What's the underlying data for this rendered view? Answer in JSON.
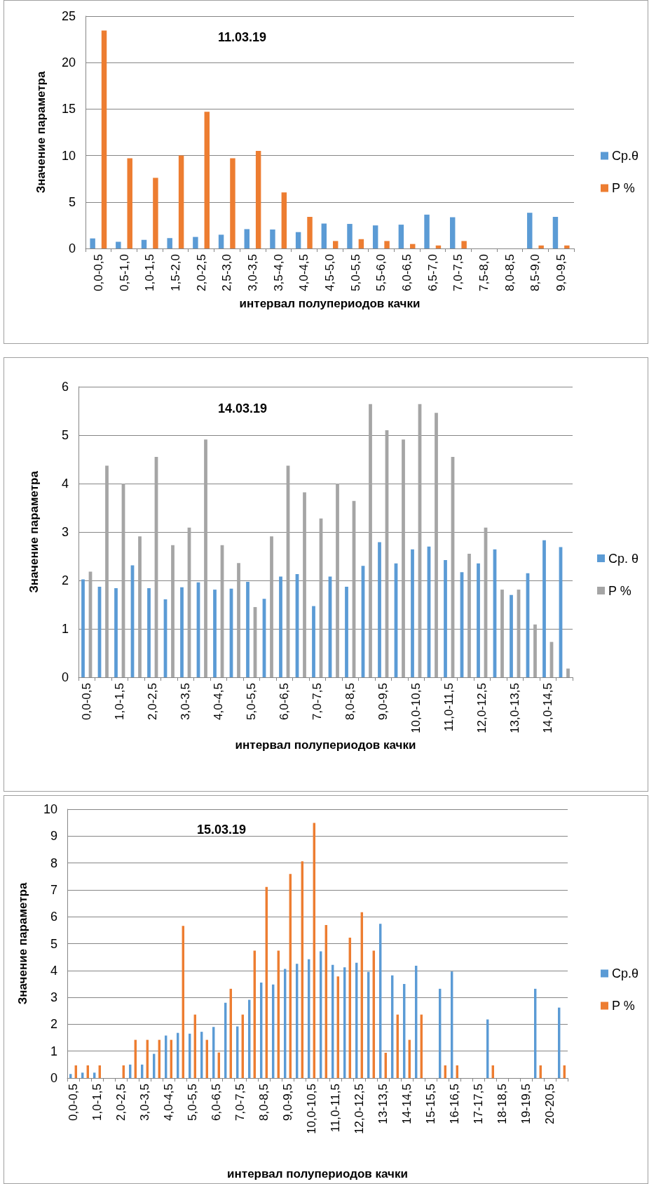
{
  "chart_data": [
    {
      "type": "bar",
      "title": "11.03.19",
      "xlabel": "интервал полупериодов качки",
      "ylabel": "Значение параметра",
      "categories": [
        "0,0-0,5",
        "0,5-1,0",
        "1,0-1,5",
        "1,5-2,0",
        "2,0-2,5",
        "2,5-3,0",
        "3,0-3,5",
        "3,5-4,0",
        "4,0-4,5",
        "4,5-5,0",
        "5,0-5,5",
        "5,5-6,0",
        "6,0-6,5",
        "6,5-7,0",
        "7,0-7,5",
        "7,5-8,0",
        "8,0-8,5",
        "8,5-9,0",
        "9,0-9,5"
      ],
      "series": [
        {
          "name": "Ср.θ",
          "color": "#5b9bd5",
          "values": [
            1.08,
            0.72,
            0.92,
            1.12,
            1.24,
            1.48,
            2.08,
            2.04,
            1.76,
            2.68,
            2.64,
            2.48,
            2.56,
            3.64,
            3.36,
            null,
            null,
            3.84,
            3.4
          ]
        },
        {
          "name": "P %",
          "color": "#ed7d31",
          "values": [
            23.45,
            9.7,
            7.6,
            10.0,
            14.7,
            9.7,
            10.5,
            6.03,
            3.4,
            0.8,
            1.0,
            0.8,
            0.48,
            0.32,
            0.8,
            null,
            null,
            0.32,
            0.32
          ]
        }
      ],
      "ylim": [
        0,
        25
      ],
      "yticks": [
        0,
        5,
        10,
        15,
        20,
        25
      ],
      "grid": "y",
      "legend": "right"
    },
    {
      "type": "bar",
      "title": "14.03.19",
      "xlabel": "интервал полупериодов качки",
      "ylabel": "Значение параметра",
      "categories": [
        "0,0-0,5",
        null,
        "1,0-1,5",
        null,
        "2,0-2,5",
        null,
        "3,0-3,5",
        null,
        "4,0-4,5",
        null,
        "5,0-5,5",
        null,
        "6,0-6,5",
        null,
        "7,0-7,5",
        null,
        "8,0-8,5",
        null,
        "9,0-9,5",
        null,
        "10,0-10,5",
        null,
        "11,0-11,5",
        null,
        "12,0-12,5",
        null,
        "13,0-13,5",
        null,
        "14,0-14,5",
        null
      ],
      "series": [
        {
          "name": "Ср. θ",
          "color": "#5b9bd5",
          "values": [
            2.02,
            1.87,
            1.84,
            2.31,
            1.84,
            1.61,
            1.86,
            1.96,
            1.81,
            1.83,
            1.97,
            1.62,
            2.08,
            2.13,
            1.47,
            2.08,
            1.87,
            2.3,
            2.79,
            2.35,
            2.64,
            2.7,
            2.42,
            2.17,
            2.35,
            2.64,
            1.7,
            2.15,
            2.83,
            2.69
          ]
        },
        {
          "name": "P %",
          "color": "#a5a5a5",
          "values": [
            2.18,
            4.37,
            4.0,
            2.91,
            4.55,
            2.73,
            3.09,
            4.91,
            2.73,
            2.36,
            1.45,
            2.91,
            4.37,
            3.82,
            3.28,
            4.0,
            3.64,
            5.64,
            5.1,
            4.91,
            5.64,
            5.46,
            4.55,
            2.55,
            3.09,
            1.81,
            1.81,
            1.09,
            0.73,
            0.18
          ]
        }
      ],
      "ylim": [
        0,
        6
      ],
      "yticks": [
        0,
        1,
        2,
        3,
        4,
        5,
        6
      ],
      "grid": "y",
      "legend": "right"
    },
    {
      "type": "bar",
      "title": "15.03.19",
      "xlabel": "интервал полупериодов качки",
      "ylabel": "Значение параметра",
      "categories": [
        "0,0-0,5",
        null,
        "1,0-1,5",
        null,
        "2,0-2,5",
        null,
        "3,0-3,5",
        null,
        "4,0-4,5",
        null,
        "5,0-5,5",
        null,
        "6,0-6,5",
        null,
        "7,0-7,5",
        null,
        "8,0-8,5",
        null,
        "9,0-9,5",
        null,
        "10,0-10,5",
        null,
        "11,0-11,5",
        null,
        "12,0-12,5",
        null,
        "13-13,5",
        null,
        "14-14,5",
        null,
        "15-15,5",
        null,
        "16-16,5",
        null,
        "17-17,5",
        null,
        "18-18,5",
        null,
        "19-19,5",
        null,
        "20-20,5",
        null
      ],
      "series": [
        {
          "name": "Ср.θ",
          "color": "#5b9bd5",
          "values": [
            0.15,
            0.2,
            0.2,
            null,
            null,
            0.5,
            0.5,
            0.9,
            1.58,
            1.68,
            1.65,
            1.72,
            1.9,
            2.8,
            1.92,
            2.91,
            3.55,
            3.48,
            4.06,
            4.25,
            4.42,
            4.71,
            4.21,
            4.12,
            4.29,
            3.95,
            5.74,
            3.82,
            3.5,
            4.18,
            null,
            3.32,
            3.96,
            null,
            null,
            2.18,
            null,
            null,
            null,
            3.32,
            null,
            2.62
          ]
        },
        {
          "name": "P %",
          "color": "#ed7d31",
          "values": [
            0.47,
            0.47,
            0.47,
            null,
            0.47,
            1.42,
            1.42,
            1.42,
            1.42,
            5.66,
            2.36,
            1.42,
            0.95,
            3.32,
            2.36,
            4.74,
            7.11,
            4.74,
            7.59,
            8.06,
            9.49,
            5.69,
            3.78,
            5.22,
            6.17,
            4.74,
            0.94,
            2.36,
            1.42,
            2.36,
            null,
            0.47,
            0.47,
            null,
            null,
            0.47,
            null,
            null,
            null,
            0.47,
            null,
            0.47
          ]
        }
      ],
      "ylim": [
        0,
        10
      ],
      "yticks": [
        0,
        1,
        2,
        3,
        4,
        5,
        6,
        7,
        8,
        9,
        10
      ],
      "grid": "y",
      "legend": "right"
    }
  ]
}
